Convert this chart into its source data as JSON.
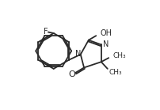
{
  "bg_color": "#ffffff",
  "line_color": "#2a2a2a",
  "line_width": 1.3,
  "font_size": 7.0,
  "font_color": "#2a2a2a",
  "xlim": [
    0.0,
    1.05
  ],
  "ylim": [
    0.05,
    1.0
  ]
}
